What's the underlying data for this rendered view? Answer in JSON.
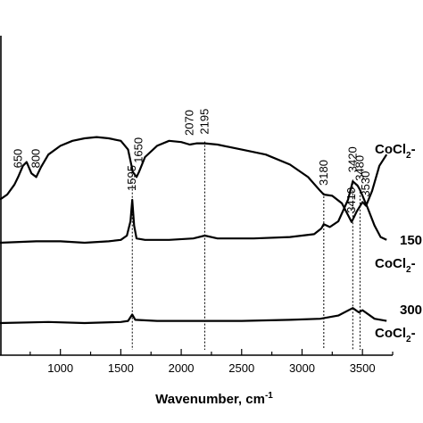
{
  "chart_data": {
    "type": "line",
    "xlabel": "Wavenumber, cm",
    "xlabel_sup": "-1",
    "xlim": [
      500,
      3750
    ],
    "xticks": [
      1000,
      1500,
      2000,
      2500,
      3000,
      3500
    ],
    "series": [
      {
        "name": "CoCl2-",
        "name_sub": "2",
        "label_main": "CoCl",
        "label_tail": "-",
        "prefix": "",
        "points": [
          [
            500,
            -2.4
          ],
          [
            560,
            -2.0
          ],
          [
            620,
            -1.2
          ],
          [
            650,
            -0.6
          ],
          [
            690,
            0.3
          ],
          [
            720,
            0.6
          ],
          [
            760,
            -0.3
          ],
          [
            800,
            -0.6
          ],
          [
            840,
            0.2
          ],
          [
            900,
            1.2
          ],
          [
            1000,
            1.9
          ],
          [
            1100,
            2.3
          ],
          [
            1200,
            2.5
          ],
          [
            1300,
            2.6
          ],
          [
            1400,
            2.5
          ],
          [
            1500,
            2.3
          ],
          [
            1560,
            1.6
          ],
          [
            1600,
            -0.2
          ],
          [
            1630,
            -0.6
          ],
          [
            1650,
            -0.2
          ],
          [
            1700,
            1.0
          ],
          [
            1800,
            1.9
          ],
          [
            1900,
            2.3
          ],
          [
            2000,
            2.2
          ],
          [
            2070,
            2.0
          ],
          [
            2130,
            2.1
          ],
          [
            2195,
            2.1
          ],
          [
            2300,
            2.0
          ],
          [
            2500,
            1.6
          ],
          [
            2700,
            1.2
          ],
          [
            2900,
            0.4
          ],
          [
            3050,
            -0.6
          ],
          [
            3150,
            -1.7
          ],
          [
            3180,
            -2.0
          ],
          [
            3250,
            -2.1
          ],
          [
            3330,
            -2.7
          ],
          [
            3410,
            -4.2
          ],
          [
            3450,
            -3.4
          ],
          [
            3500,
            -2.6
          ],
          [
            3530,
            -2.9
          ],
          [
            3580,
            -1.7
          ],
          [
            3640,
            0.3
          ],
          [
            3700,
            1.2
          ]
        ],
        "peak_labels": [
          "650",
          "800",
          "1650",
          "2070",
          "2195",
          "3180",
          "3410",
          "3530"
        ]
      },
      {
        "name": "150 CoCl2-",
        "name_sub": "2",
        "label_main": "CoCl",
        "label_tail": "-",
        "prefix": "150",
        "points": [
          [
            500,
            0
          ],
          [
            800,
            0.1
          ],
          [
            1000,
            0.1
          ],
          [
            1200,
            0.0
          ],
          [
            1400,
            0.1
          ],
          [
            1500,
            0.2
          ],
          [
            1550,
            0.5
          ],
          [
            1580,
            1.5
          ],
          [
            1595,
            3.0
          ],
          [
            1610,
            1.2
          ],
          [
            1630,
            0.3
          ],
          [
            1700,
            0.2
          ],
          [
            1900,
            0.2
          ],
          [
            2100,
            0.3
          ],
          [
            2195,
            0.5
          ],
          [
            2300,
            0.3
          ],
          [
            2600,
            0.3
          ],
          [
            2900,
            0.4
          ],
          [
            3100,
            0.6
          ],
          [
            3160,
            1.0
          ],
          [
            3180,
            1.3
          ],
          [
            3230,
            1.1
          ],
          [
            3300,
            1.5
          ],
          [
            3380,
            3.0
          ],
          [
            3420,
            4.3
          ],
          [
            3460,
            4.0
          ],
          [
            3480,
            3.7
          ],
          [
            3540,
            2.5
          ],
          [
            3600,
            1.2
          ],
          [
            3650,
            0.4
          ],
          [
            3700,
            0.2
          ]
        ],
        "peak_labels": [
          "1595",
          "3420",
          "3480"
        ]
      },
      {
        "name": "300 CoCl2-",
        "name_sub": "2",
        "label_main": "CoCl",
        "label_tail": "-",
        "prefix": "300",
        "points": [
          [
            500,
            0
          ],
          [
            900,
            0.1
          ],
          [
            1200,
            0.0
          ],
          [
            1500,
            0.1
          ],
          [
            1560,
            0.2
          ],
          [
            1595,
            0.8
          ],
          [
            1620,
            0.3
          ],
          [
            1800,
            0.2
          ],
          [
            2100,
            0.2
          ],
          [
            2500,
            0.2
          ],
          [
            2900,
            0.3
          ],
          [
            3150,
            0.4
          ],
          [
            3300,
            0.7
          ],
          [
            3420,
            1.4
          ],
          [
            3470,
            1.0
          ],
          [
            3500,
            1.2
          ],
          [
            3600,
            0.4
          ],
          [
            3700,
            0.2
          ]
        ],
        "peak_labels": []
      }
    ],
    "reference_lines": [
      1595,
      2195,
      3180,
      3420,
      3480
    ]
  }
}
